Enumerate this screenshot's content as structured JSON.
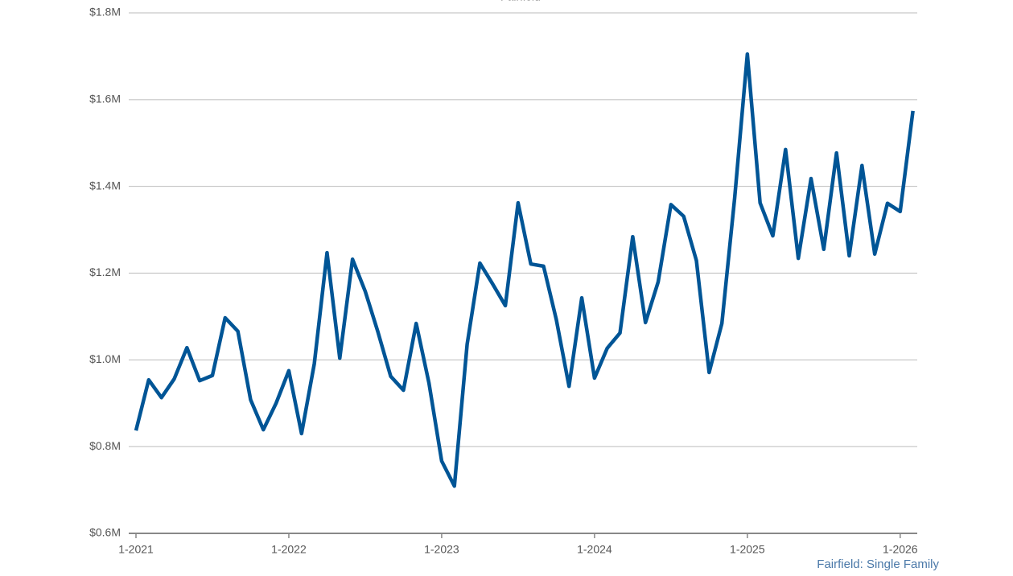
{
  "chart_data": {
    "type": "line",
    "legend_position": "top",
    "categories": [
      "1-2021",
      null,
      null,
      null,
      null,
      null,
      null,
      null,
      null,
      null,
      null,
      null,
      "1-2022",
      null,
      null,
      null,
      null,
      null,
      null,
      null,
      null,
      null,
      null,
      null,
      "1-2023",
      null,
      null,
      null,
      null,
      null,
      null,
      null,
      null,
      null,
      null,
      null,
      "1-2024",
      null,
      null,
      null,
      null,
      null,
      null,
      null,
      null,
      null,
      null,
      null,
      "1-2025",
      null,
      null,
      null,
      null,
      null,
      null,
      null,
      null,
      null,
      null,
      null,
      "1-2026",
      null
    ],
    "series": [
      {
        "name": "Fairfield",
        "color": "#005596",
        "values": [
          837000,
          954000,
          913000,
          956000,
          1028000,
          952000,
          964000,
          1097000,
          1066000,
          908000,
          839000,
          900000,
          975000,
          830000,
          991000,
          1247000,
          1004000,
          1232000,
          1158000,
          1064000,
          962000,
          930000,
          1084000,
          947000,
          767000,
          709000,
          1036000,
          1223000,
          1175000,
          1125000,
          1362000,
          1221000,
          1216000,
          1093000,
          939000,
          1143000,
          958000,
          1027000,
          1062000,
          1284000,
          1086000,
          1180000,
          1358000,
          1331000,
          1229000,
          971000,
          1084000,
          1372000,
          1705000,
          1362000,
          1286000,
          1485000,
          1234000,
          1418000,
          1255000,
          1477000,
          1240000,
          1448000,
          1244000,
          1361000,
          1342000,
          1574000
        ]
      }
    ],
    "ylim": [
      600000,
      1800000
    ],
    "yticks": [
      {
        "value": 600000,
        "label": "$0.6M"
      },
      {
        "value": 800000,
        "label": "$0.8M"
      },
      {
        "value": 1000000,
        "label": "$1.0M"
      },
      {
        "value": 1200000,
        "label": "$1.2M"
      },
      {
        "value": 1400000,
        "label": "$1.4M"
      },
      {
        "value": 1600000,
        "label": "$1.6M"
      },
      {
        "value": 1800000,
        "label": "$1.8M"
      }
    ],
    "grid": true,
    "source": "Fairfield: Single Family"
  }
}
